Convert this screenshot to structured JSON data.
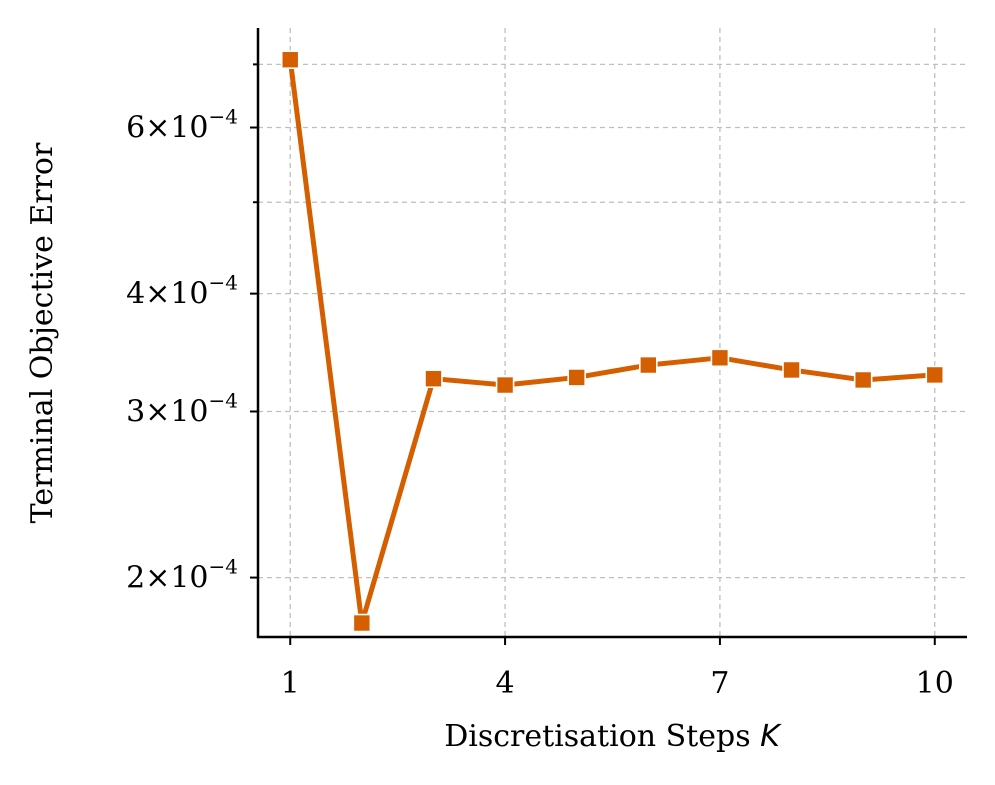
{
  "chart_data": {
    "type": "line",
    "xlabel": "Discretisation Steps ",
    "xlabel_symbol": "K",
    "ylabel": "Terminal Objective Error",
    "y_scale": "log",
    "xlim": [
      0.55,
      10.45
    ],
    "ylim": [
      0.000173,
      0.000765
    ],
    "x_ticks": [
      {
        "value": 1,
        "label": "1"
      },
      {
        "value": 4,
        "label": "4"
      },
      {
        "value": 7,
        "label": "7"
      },
      {
        "value": 10,
        "label": "10"
      }
    ],
    "y_major_ticks": [
      {
        "value": 0.0002,
        "mantissa": "2",
        "times": "×",
        "base": "10",
        "exponent": "−4"
      },
      {
        "value": 0.0003,
        "mantissa": "3",
        "times": "×",
        "base": "10",
        "exponent": "−4"
      },
      {
        "value": 0.0004,
        "mantissa": "4",
        "times": "×",
        "base": "10",
        "exponent": "−4"
      },
      {
        "value": 0.0006,
        "mantissa": "6",
        "times": "×",
        "base": "10",
        "exponent": "−4"
      }
    ],
    "y_minor_ticks": [
      0.0005,
      0.0007
    ],
    "grid": true,
    "series": [
      {
        "color": "#d45e00",
        "marker": "square",
        "x": [
          1,
          2,
          3,
          4,
          5,
          6,
          7,
          8,
          9,
          10
        ],
        "y": [
          0.000708,
          0.000179,
          0.000325,
          0.00032,
          0.000326,
          0.000336,
          0.000342,
          0.000332,
          0.000324,
          0.000328
        ]
      }
    ]
  }
}
